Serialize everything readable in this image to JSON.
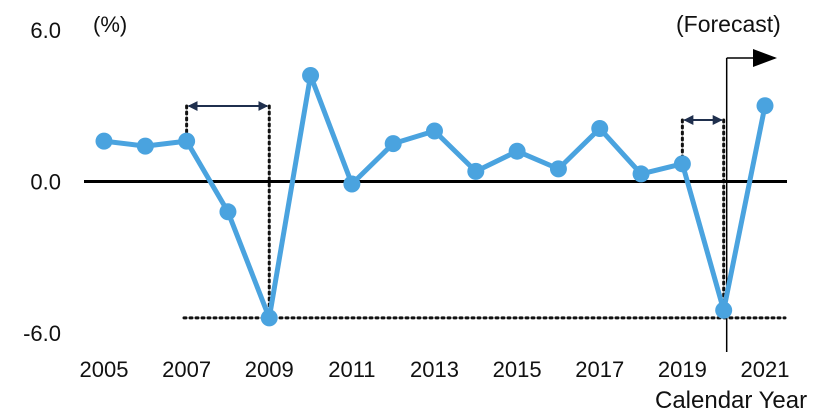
{
  "chart_data": {
    "type": "line",
    "unit_label": "(%)",
    "xlabel": "Calendar Year",
    "forecast_label": "(Forecast)",
    "x": [
      2005,
      2006,
      2007,
      2008,
      2009,
      2010,
      2011,
      2012,
      2013,
      2014,
      2015,
      2016,
      2017,
      2018,
      2019,
      2020,
      2021
    ],
    "x_tick_labels": [
      "2005",
      "2007",
      "2009",
      "2011",
      "2013",
      "2015",
      "2017",
      "2019",
      "2021"
    ],
    "y_tick_labels": [
      "6.0",
      "0.0",
      "-6.0"
    ],
    "ylim": [
      -6.0,
      6.0
    ],
    "series": [
      {
        "values": [
          1.6,
          1.4,
          1.6,
          -1.2,
          -5.4,
          4.2,
          -0.1,
          1.5,
          2.0,
          0.4,
          1.2,
          0.5,
          2.1,
          0.3,
          0.7,
          -5.1,
          3.0
        ]
      }
    ],
    "grid": false,
    "zero_line": true,
    "reference_low": -5.4,
    "forecast_start": 2020,
    "annotations": [
      {
        "type": "double-arrow",
        "from_year": 2007,
        "to_year": 2009
      },
      {
        "type": "double-arrow",
        "from_year": 2019,
        "to_year": 2020
      }
    ],
    "colors": {
      "series": "#4aa3df",
      "axis": "#000000",
      "text": "#111111",
      "dotted": "#111111",
      "arrow": "#1f2f4d"
    }
  }
}
